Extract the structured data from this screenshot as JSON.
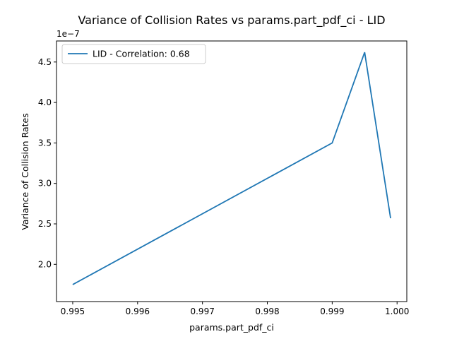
{
  "chart_data": {
    "type": "line",
    "title": "Variance of Collision Rates vs params.part_pdf_ci - LID",
    "xlabel": "params.part_pdf_ci",
    "ylabel": "Variance of Collision Rates",
    "y_offset_label": "1e−7",
    "xlim": [
      0.99475,
      1.00015
    ],
    "ylim": [
      1.54,
      4.76
    ],
    "x_ticks": [
      {
        "value": 0.995,
        "label": "0.995"
      },
      {
        "value": 0.996,
        "label": "0.996"
      },
      {
        "value": 0.997,
        "label": "0.997"
      },
      {
        "value": 0.998,
        "label": "0.998"
      },
      {
        "value": 0.999,
        "label": "0.999"
      },
      {
        "value": 1.0,
        "label": "1.000"
      }
    ],
    "y_ticks": [
      {
        "value": 2.0,
        "label": "2.0"
      },
      {
        "value": 2.5,
        "label": "2.5"
      },
      {
        "value": 3.0,
        "label": "3.0"
      },
      {
        "value": 3.5,
        "label": "3.5"
      },
      {
        "value": 4.0,
        "label": "4.0"
      },
      {
        "value": 4.5,
        "label": "4.5"
      }
    ],
    "series": [
      {
        "name": "LID - Correlation: 0.68",
        "color": "#1f77b4",
        "x": [
          0.995,
          0.999,
          0.9995,
          0.9999
        ],
        "y": [
          1.75,
          3.5,
          4.62,
          2.57
        ]
      }
    ],
    "grid": false,
    "legend_position": "upper-left"
  }
}
